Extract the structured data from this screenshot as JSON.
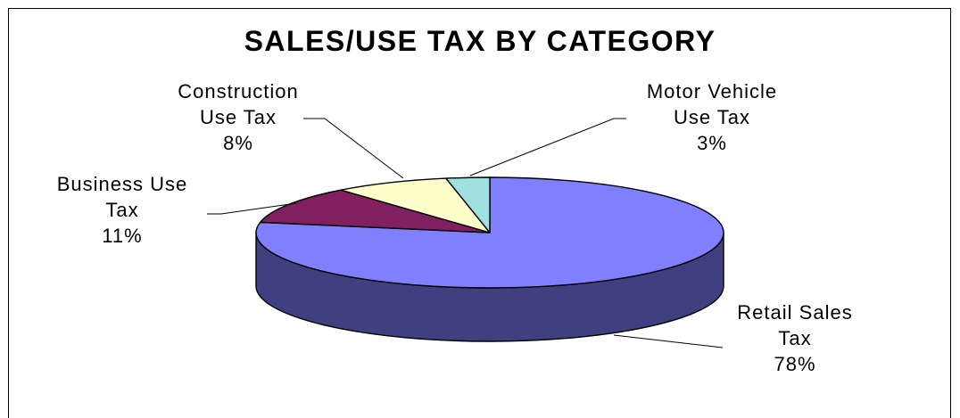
{
  "chart_data": {
    "type": "pie",
    "title": "SALES/USE TAX BY CATEGORY",
    "slices": [
      {
        "label_lines": [
          "Retail Sales",
          "Tax"
        ],
        "value": 78,
        "percent_label": "78%",
        "top_color": "#8080ff",
        "side_color": "#404080"
      },
      {
        "label_lines": [
          "Business Use",
          "Tax"
        ],
        "value": 11,
        "percent_label": "11%",
        "top_color": "#802060",
        "side_color": "#401030"
      },
      {
        "label_lines": [
          "Construction",
          "Use Tax"
        ],
        "value": 8,
        "percent_label": "8%",
        "top_color": "#ffffcc",
        "side_color": "#808066"
      },
      {
        "label_lines": [
          "Motor Vehicle",
          "Use Tax"
        ],
        "value": 3,
        "percent_label": "3%",
        "top_color": "#a0e0e0",
        "side_color": "#507070"
      }
    ],
    "style": "3d",
    "legend": "none"
  }
}
